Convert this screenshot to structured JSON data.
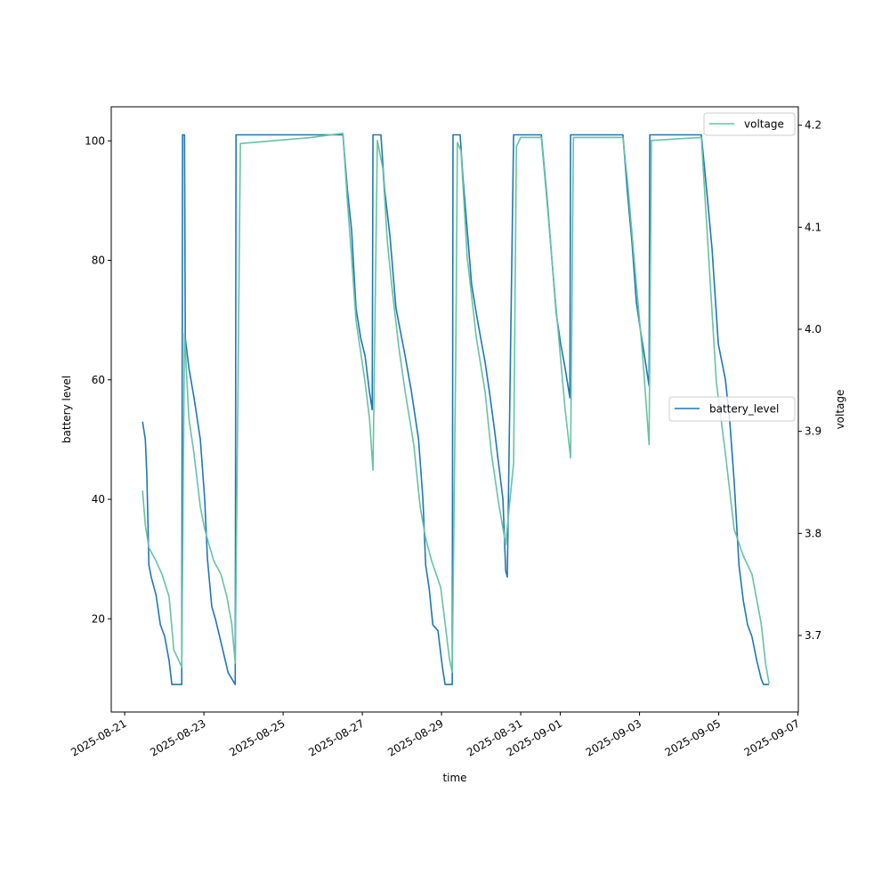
{
  "chart_data": {
    "type": "line",
    "xlabel": "time",
    "ylabel_left": "battery level",
    "ylabel_right": "voltage",
    "x_unit": "days since 2025-08-21",
    "xlim": [
      -0.34,
      17.01
    ],
    "ylim_left": [
      4.4,
      105.7
    ],
    "ylim_right": [
      3.625,
      4.218
    ],
    "x_ticks": [
      {
        "v": 0,
        "label": "2025-08-21"
      },
      {
        "v": 2,
        "label": "2025-08-23"
      },
      {
        "v": 4,
        "label": "2025-08-25"
      },
      {
        "v": 6,
        "label": "2025-08-27"
      },
      {
        "v": 8,
        "label": "2025-08-29"
      },
      {
        "v": 10,
        "label": "2025-08-31"
      },
      {
        "v": 11,
        "label": "2025-09-01"
      },
      {
        "v": 13,
        "label": "2025-09-03"
      },
      {
        "v": 15,
        "label": "2025-09-05"
      },
      {
        "v": 17,
        "label": "2025-09-07"
      }
    ],
    "y_ticks_left": [
      {
        "v": 20,
        "label": "20"
      },
      {
        "v": 40,
        "label": "40"
      },
      {
        "v": 60,
        "label": "60"
      },
      {
        "v": 80,
        "label": "80"
      },
      {
        "v": 100,
        "label": "100"
      }
    ],
    "y_ticks_right": [
      {
        "v": 3.7,
        "label": "3.7"
      },
      {
        "v": 3.8,
        "label": "3.8"
      },
      {
        "v": 3.9,
        "label": "3.9"
      },
      {
        "v": 4.0,
        "label": "4.0"
      },
      {
        "v": 4.1,
        "label": "4.1"
      },
      {
        "v": 4.2,
        "label": "4.2"
      }
    ],
    "series": [
      {
        "name": "battery_level",
        "axis": "left",
        "color": "#1f77b4",
        "legend": "center-right",
        "points": [
          [
            0.45,
            53
          ],
          [
            0.52,
            50
          ],
          [
            0.56,
            44
          ],
          [
            0.61,
            29
          ],
          [
            0.67,
            27
          ],
          [
            0.79,
            24
          ],
          [
            0.9,
            19
          ],
          [
            1.01,
            17
          ],
          [
            1.12,
            13
          ],
          [
            1.19,
            9
          ],
          [
            1.44,
            9
          ],
          [
            1.46,
            101
          ],
          [
            1.51,
            101
          ],
          [
            1.53,
            67
          ],
          [
            1.62,
            62
          ],
          [
            1.75,
            57
          ],
          [
            1.91,
            50
          ],
          [
            2.02,
            40
          ],
          [
            2.09,
            30
          ],
          [
            2.2,
            22
          ],
          [
            2.29,
            20
          ],
          [
            2.47,
            15
          ],
          [
            2.61,
            11
          ],
          [
            2.79,
            9
          ],
          [
            2.81,
            101
          ],
          [
            5.51,
            101
          ],
          [
            5.62,
            92
          ],
          [
            5.73,
            85
          ],
          [
            5.84,
            72
          ],
          [
            5.96,
            67
          ],
          [
            6.07,
            64
          ],
          [
            6.18,
            58
          ],
          [
            6.25,
            55
          ],
          [
            6.27,
            101
          ],
          [
            6.47,
            101
          ],
          [
            6.56,
            92
          ],
          [
            6.7,
            84
          ],
          [
            6.85,
            72
          ],
          [
            7.08,
            64
          ],
          [
            7.24,
            58
          ],
          [
            7.42,
            50
          ],
          [
            7.53,
            40
          ],
          [
            7.6,
            29
          ],
          [
            7.69,
            25
          ],
          [
            7.78,
            19
          ],
          [
            7.91,
            18
          ],
          [
            8.02,
            12
          ],
          [
            8.09,
            9
          ],
          [
            8.27,
            9
          ],
          [
            8.29,
            101
          ],
          [
            8.47,
            101
          ],
          [
            8.54,
            94
          ],
          [
            8.65,
            85
          ],
          [
            8.76,
            76
          ],
          [
            8.88,
            71
          ],
          [
            8.99,
            67
          ],
          [
            9.1,
            63
          ],
          [
            9.21,
            58
          ],
          [
            9.33,
            52
          ],
          [
            9.44,
            46
          ],
          [
            9.55,
            40
          ],
          [
            9.62,
            28
          ],
          [
            9.66,
            27
          ],
          [
            9.82,
            101
          ],
          [
            10.52,
            101
          ],
          [
            10.67,
            90
          ],
          [
            10.79,
            80
          ],
          [
            10.9,
            71
          ],
          [
            11.01,
            66
          ],
          [
            11.12,
            62
          ],
          [
            11.24,
            57
          ],
          [
            11.26,
            101
          ],
          [
            12.58,
            101
          ],
          [
            12.7,
            91
          ],
          [
            12.81,
            83
          ],
          [
            12.92,
            73
          ],
          [
            13.03,
            68
          ],
          [
            13.15,
            63
          ],
          [
            13.24,
            59
          ],
          [
            13.26,
            101
          ],
          [
            14.56,
            101
          ],
          [
            14.72,
            90
          ],
          [
            14.83,
            82
          ],
          [
            14.99,
            66
          ],
          [
            15.17,
            60
          ],
          [
            15.28,
            53
          ],
          [
            15.39,
            43
          ],
          [
            15.51,
            29
          ],
          [
            15.62,
            23
          ],
          [
            15.73,
            19
          ],
          [
            15.84,
            17
          ],
          [
            15.96,
            13
          ],
          [
            16.07,
            10
          ],
          [
            16.13,
            9
          ],
          [
            16.27,
            9
          ]
        ]
      },
      {
        "name": "voltage",
        "axis": "right",
        "color": "#66c2a5",
        "legend": "top-right",
        "points": [
          [
            0.45,
            3.842
          ],
          [
            0.52,
            3.808
          ],
          [
            0.61,
            3.786
          ],
          [
            0.79,
            3.773
          ],
          [
            0.94,
            3.76
          ],
          [
            1.12,
            3.738
          ],
          [
            1.24,
            3.686
          ],
          [
            1.44,
            3.669
          ],
          [
            1.51,
            3.996
          ],
          [
            1.62,
            3.913
          ],
          [
            1.75,
            3.878
          ],
          [
            1.91,
            3.826
          ],
          [
            2.02,
            3.804
          ],
          [
            2.25,
            3.773
          ],
          [
            2.43,
            3.76
          ],
          [
            2.58,
            3.738
          ],
          [
            2.7,
            3.712
          ],
          [
            2.79,
            3.673
          ],
          [
            2.92,
            4.182
          ],
          [
            4.72,
            4.188
          ],
          [
            5.51,
            4.192
          ],
          [
            5.62,
            4.127
          ],
          [
            5.73,
            4.07
          ],
          [
            5.84,
            4.009
          ],
          [
            6.07,
            3.948
          ],
          [
            6.18,
            3.913
          ],
          [
            6.27,
            3.862
          ],
          [
            6.38,
            4.185
          ],
          [
            6.52,
            4.157
          ],
          [
            6.63,
            4.087
          ],
          [
            6.74,
            4.044
          ],
          [
            6.92,
            3.983
          ],
          [
            7.08,
            3.939
          ],
          [
            7.3,
            3.887
          ],
          [
            7.46,
            3.826
          ],
          [
            7.6,
            3.795
          ],
          [
            7.75,
            3.773
          ],
          [
            7.98,
            3.747
          ],
          [
            8.2,
            3.677
          ],
          [
            8.27,
            3.664
          ],
          [
            8.36,
            3.974
          ],
          [
            8.4,
            4.183
          ],
          [
            8.49,
            4.175
          ],
          [
            8.65,
            4.07
          ],
          [
            8.88,
            3.991
          ],
          [
            9.1,
            3.939
          ],
          [
            9.26,
            3.878
          ],
          [
            9.44,
            3.83
          ],
          [
            9.62,
            3.789
          ],
          [
            9.71,
            3.826
          ],
          [
            9.82,
            3.869
          ],
          [
            9.89,
            4.179
          ],
          [
            10.0,
            4.188
          ],
          [
            10.52,
            4.188
          ],
          [
            10.67,
            4.122
          ],
          [
            10.9,
            4.018
          ],
          [
            11.12,
            3.922
          ],
          [
            11.26,
            3.874
          ],
          [
            11.33,
            4.188
          ],
          [
            12.58,
            4.188
          ],
          [
            12.7,
            4.144
          ],
          [
            12.92,
            4.044
          ],
          [
            13.08,
            3.974
          ],
          [
            13.24,
            3.887
          ],
          [
            13.3,
            4.185
          ],
          [
            14.56,
            4.188
          ],
          [
            14.72,
            4.087
          ],
          [
            14.94,
            3.948
          ],
          [
            15.17,
            3.878
          ],
          [
            15.39,
            3.804
          ],
          [
            15.62,
            3.778
          ],
          [
            15.84,
            3.76
          ],
          [
            16.07,
            3.712
          ],
          [
            16.18,
            3.673
          ],
          [
            16.27,
            3.653
          ]
        ]
      }
    ]
  }
}
